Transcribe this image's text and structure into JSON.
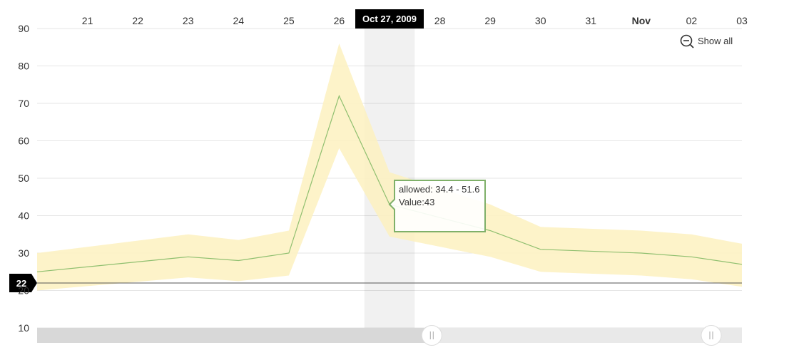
{
  "chart_data": {
    "type": "line",
    "x_axis": {
      "tick_labels": [
        "21",
        "22",
        "23",
        "24",
        "25",
        "26",
        "Oct 27, 2009",
        "28",
        "29",
        "30",
        "31",
        "Nov",
        "02",
        "03"
      ],
      "bold_tick": "Nov",
      "range": [
        "2009-10-20",
        "2009-11-03"
      ]
    },
    "y_axis": {
      "ticks": [
        10,
        20,
        30,
        40,
        50,
        60,
        70,
        80,
        90
      ],
      "range": [
        10,
        90
      ]
    },
    "x": [
      "2009-10-20",
      "2009-10-23",
      "2009-10-24",
      "2009-10-25",
      "2009-10-26",
      "2009-10-27",
      "2009-10-29",
      "2009-10-30",
      "2009-11-01",
      "2009-11-02",
      "2009-11-03"
    ],
    "series": [
      {
        "values": [
          25,
          29,
          28,
          30,
          72,
          43,
          36,
          31,
          30,
          29,
          27
        ],
        "color": "#8fbf6f"
      }
    ],
    "band": {
      "low": [
        20,
        23.5,
        22.5,
        24,
        58,
        34.4,
        29,
        25,
        24,
        23,
        21
      ],
      "high": [
        30,
        35,
        33.5,
        36,
        86,
        51.6,
        43,
        37,
        36,
        35,
        32.5
      ],
      "color": "#fdf1bf"
    },
    "guide_line": {
      "value": 22,
      "label": "22"
    },
    "cursor": {
      "date": "2009-10-27",
      "label": "Oct 27, 2009"
    },
    "tooltip": {
      "range_text": "allowed: 34.4 - 51.6",
      "value_text": "Value:43",
      "border_color": "#7fb069"
    },
    "scrollbar": {
      "start": 0.56,
      "end": 1.0
    },
    "grid": true
  },
  "controls": {
    "show_all_label": "Show all",
    "show_all_icon": "zoom-out-icon"
  }
}
